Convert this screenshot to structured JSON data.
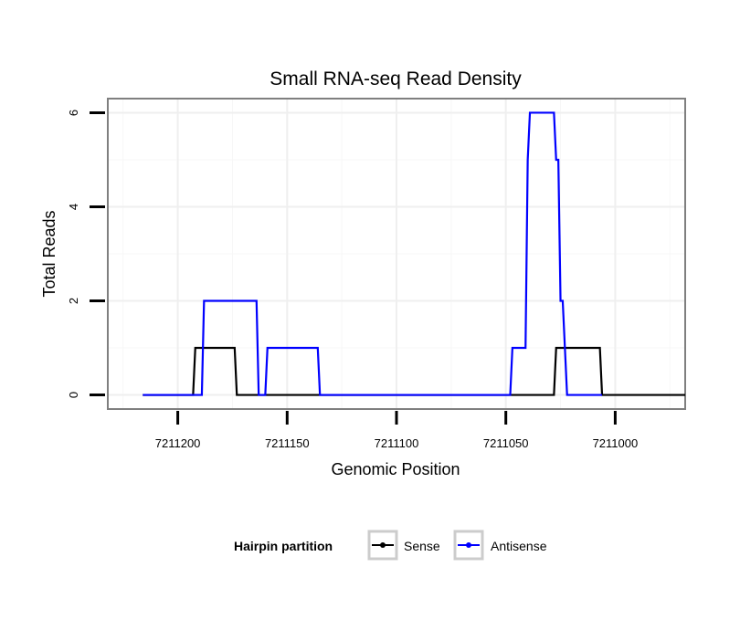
{
  "chart_data": {
    "type": "line",
    "title": "Small RNA-seq Read Density",
    "xlabel": "Genomic Position",
    "ylabel": "Total Reads",
    "xlim": [
      7211232,
      7210968
    ],
    "x_reversed": true,
    "ylim": [
      -0.3,
      6.3
    ],
    "x_ticks": [
      7211200,
      7211150,
      7211100,
      7211050,
      7211000
    ],
    "x_tick_labels": [
      "7211200",
      "7211150",
      "7211100",
      "7211050",
      "7211000"
    ],
    "y_ticks": [
      0,
      2,
      4,
      6
    ],
    "y_tick_labels": [
      "0",
      "2",
      "4",
      "6"
    ],
    "grid": true,
    "legend": {
      "title": "Hairpin partition",
      "position": "bottom",
      "entries": [
        "Sense",
        "Antisense"
      ]
    },
    "series": [
      {
        "name": "Sense",
        "color": "#000000",
        "points": [
          [
            7211216,
            0
          ],
          [
            7211193,
            0
          ],
          [
            7211192,
            1
          ],
          [
            7211174,
            1
          ],
          [
            7211173,
            0
          ],
          [
            7211028,
            0
          ],
          [
            7211027,
            1
          ],
          [
            7211007,
            1
          ],
          [
            7211006,
            0
          ],
          [
            7210968,
            0
          ]
        ]
      },
      {
        "name": "Antisense",
        "color": "#0000ff",
        "points": [
          [
            7211216,
            0
          ],
          [
            7211189,
            0
          ],
          [
            7211188,
            2
          ],
          [
            7211164,
            2
          ],
          [
            7211163,
            0
          ],
          [
            7211160,
            0
          ],
          [
            7211159,
            1
          ],
          [
            7211136,
            1
          ],
          [
            7211135,
            0
          ],
          [
            7211048,
            0
          ],
          [
            7211047,
            1
          ],
          [
            7211041,
            1
          ],
          [
            7211040,
            5
          ],
          [
            7211039,
            6
          ],
          [
            7211028,
            6
          ],
          [
            7211027,
            5
          ],
          [
            7211026,
            5
          ],
          [
            7211025,
            2
          ],
          [
            7211024,
            2
          ],
          [
            7211022,
            0
          ],
          [
            7211006,
            0
          ]
        ]
      }
    ]
  }
}
